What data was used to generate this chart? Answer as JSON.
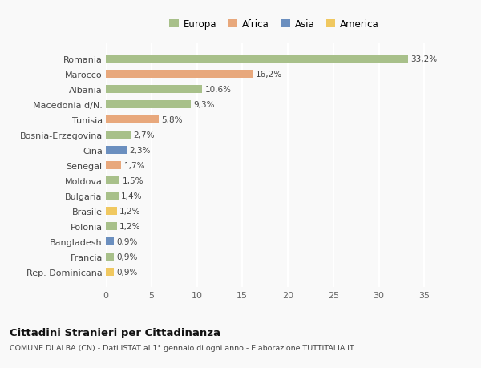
{
  "categories": [
    "Romania",
    "Marocco",
    "Albania",
    "Macedonia d/N.",
    "Tunisia",
    "Bosnia-Erzegovina",
    "Cina",
    "Senegal",
    "Moldova",
    "Bulgaria",
    "Brasile",
    "Polonia",
    "Bangladesh",
    "Francia",
    "Rep. Dominicana"
  ],
  "values": [
    33.2,
    16.2,
    10.6,
    9.3,
    5.8,
    2.7,
    2.3,
    1.7,
    1.5,
    1.4,
    1.2,
    1.2,
    0.9,
    0.9,
    0.9
  ],
  "labels": [
    "33,2%",
    "16,2%",
    "10,6%",
    "9,3%",
    "5,8%",
    "2,7%",
    "2,3%",
    "1,7%",
    "1,5%",
    "1,4%",
    "1,2%",
    "1,2%",
    "0,9%",
    "0,9%",
    "0,9%"
  ],
  "colors": [
    "#a8c08a",
    "#e8a87c",
    "#a8c08a",
    "#a8c08a",
    "#e8a87c",
    "#a8c08a",
    "#6b8fbf",
    "#e8a87c",
    "#a8c08a",
    "#a8c08a",
    "#f0c860",
    "#a8c08a",
    "#6b8fbf",
    "#a8c08a",
    "#f0c860"
  ],
  "legend_labels": [
    "Europa",
    "Africa",
    "Asia",
    "America"
  ],
  "legend_colors": [
    "#a8c08a",
    "#e8a87c",
    "#6b8fbf",
    "#f0c860"
  ],
  "title": "Cittadini Stranieri per Cittadinanza",
  "subtitle": "COMUNE DI ALBA (CN) - Dati ISTAT al 1° gennaio di ogni anno - Elaborazione TUTTITALIA.IT",
  "xlim": [
    0,
    37
  ],
  "xticks": [
    0,
    5,
    10,
    15,
    20,
    25,
    30,
    35
  ],
  "background_color": "#f9f9f9",
  "grid_color": "#ffffff",
  "bar_height": 0.55
}
